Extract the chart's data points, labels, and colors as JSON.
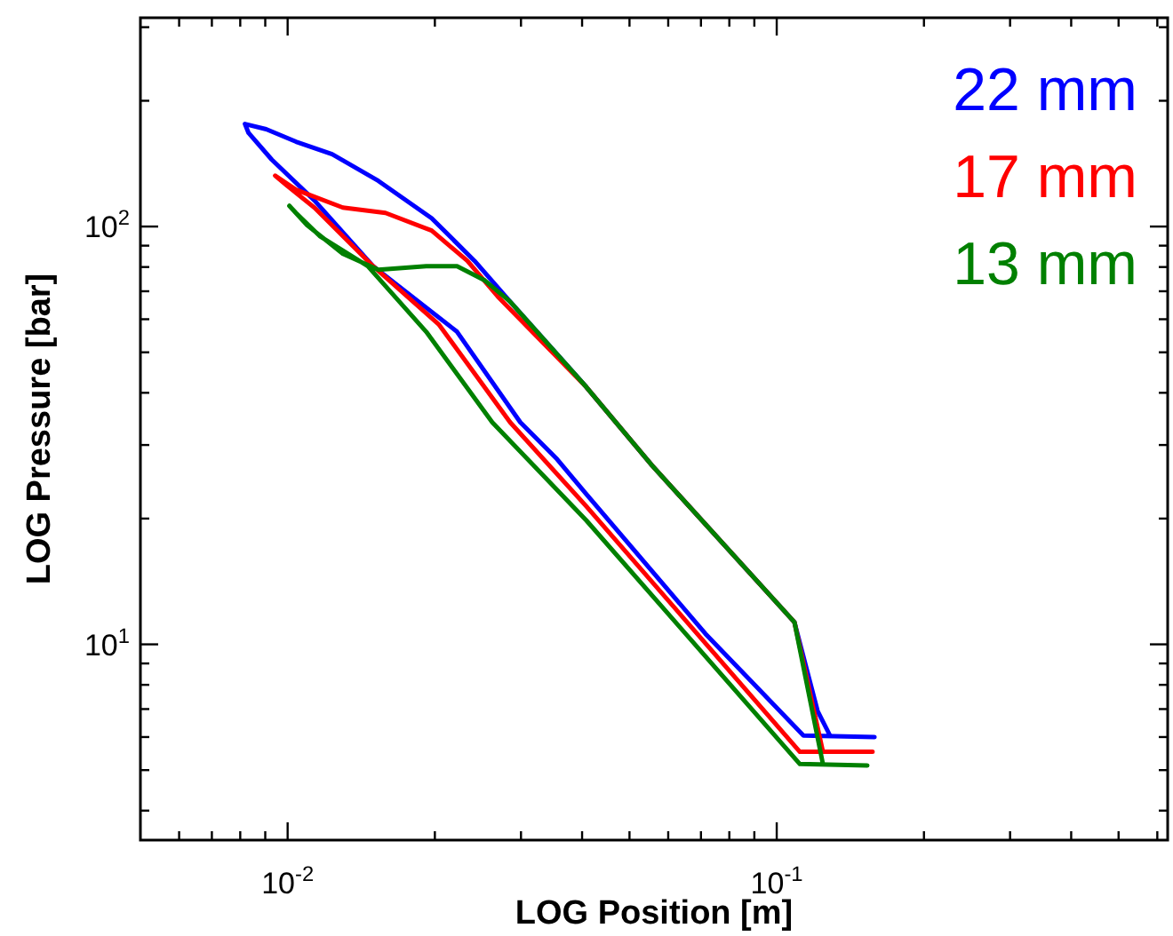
{
  "chart_data": {
    "type": "line",
    "xlabel": "LOG Position [m]",
    "ylabel": "LOG Pressure [bar]",
    "log": "xy",
    "legend": "top right",
    "marker": "none",
    "line_style": "solid",
    "xlim": [
      0.005,
      0.63
    ],
    "ylim": [
      3.4,
      316
    ],
    "xticks": [
      {
        "value": 0.006,
        "label": null
      },
      {
        "value": 0.007,
        "label": null
      },
      {
        "value": 0.008,
        "label": null
      },
      {
        "value": 0.009,
        "label": null
      },
      {
        "value": 0.01,
        "label": "10$^{-2}$"
      },
      {
        "value": 0.02,
        "label": null
      },
      {
        "value": 0.03,
        "label": null
      },
      {
        "value": 0.04,
        "label": null
      },
      {
        "value": 0.05,
        "label": null
      },
      {
        "value": 0.06,
        "label": null
      },
      {
        "value": 0.07,
        "label": null
      },
      {
        "value": 0.08,
        "label": null
      },
      {
        "value": 0.09,
        "label": null
      },
      {
        "value": 0.1,
        "label": "10$^{-1}$"
      },
      {
        "value": 0.2,
        "label": null
      },
      {
        "value": 0.3,
        "label": null
      },
      {
        "value": 0.4,
        "label": null
      },
      {
        "value": 0.5,
        "label": null
      },
      {
        "value": 0.6,
        "label": null
      }
    ],
    "yticks": [
      {
        "value": 4,
        "label": null
      },
      {
        "value": 5,
        "label": null
      },
      {
        "value": 6,
        "label": null
      },
      {
        "value": 7,
        "label": null
      },
      {
        "value": 8,
        "label": null
      },
      {
        "value": 9,
        "label": null
      },
      {
        "value": 10,
        "label": "10$^{1}$"
      },
      {
        "value": 20,
        "label": null
      },
      {
        "value": 30,
        "label": null
      },
      {
        "value": 40,
        "label": null
      },
      {
        "value": 50,
        "label": null
      },
      {
        "value": 60,
        "label": null
      },
      {
        "value": 70,
        "label": null
      },
      {
        "value": 80,
        "label": null
      },
      {
        "value": 90,
        "label": null
      },
      {
        "value": 100,
        "label": "10$^{2}$"
      },
      {
        "value": 200,
        "label": null
      },
      {
        "value": 300,
        "label": null
      }
    ],
    "series": [
      {
        "name": "22 mm",
        "color": "#0000ff",
        "x": [
          0.1585,
          0.1134,
          0.0715,
          0.0408,
          0.0354,
          0.0299,
          0.0222,
          0.01495,
          0.01134,
          0.00928,
          0.00832,
          0.00818,
          0.00904,
          0.0104,
          0.01233,
          0.01533,
          0.0197,
          0.0241,
          0.0285,
          0.0408,
          0.0556,
          0.1087,
          0.1212,
          0.1285
        ],
        "values": [
          6.0,
          6.05,
          10.6,
          22.9,
          27.9,
          34.0,
          56.0,
          80.4,
          115.5,
          144.6,
          167.5,
          176,
          171,
          159.6,
          149,
          128.6,
          104.7,
          82.8,
          66.1,
          41.3,
          26.8,
          11.3,
          6.93,
          6.05
        ]
      },
      {
        "name": "17 mm",
        "color": "#ff0000",
        "x": [
          0.157,
          0.1115,
          0.0408,
          0.0285,
          0.0204,
          0.01495,
          0.01134,
          0.01,
          0.00943,
          0.0104,
          0.01297,
          0.01585,
          0.0197,
          0.0233,
          0.0269,
          0.0408,
          0.0556,
          0.1087,
          0.1243
        ],
        "values": [
          5.53,
          5.53,
          21.4,
          34.0,
          58.2,
          80.4,
          111,
          124.9,
          132.4,
          122.5,
          111,
          107.8,
          97.8,
          82.8,
          68.0,
          41.3,
          26.8,
          11.3,
          5.53
        ]
      },
      {
        "name": "13 mm",
        "color": "#008000",
        "x": [
          0.1532,
          0.1115,
          0.0408,
          0.0262,
          0.0192,
          0.01458,
          0.01163,
          0.0104,
          0.01008,
          0.01096,
          0.01297,
          0.01533,
          0.0192,
          0.0222,
          0.0253,
          0.0285,
          0.0408,
          0.0556,
          0.1087,
          0.1243
        ],
        "values": [
          5.13,
          5.17,
          19.8,
          34.0,
          56.0,
          80.4,
          94.9,
          107.8,
          112.1,
          100.7,
          86.1,
          78.8,
          80.4,
          80.4,
          74.3,
          66.1,
          41.3,
          26.8,
          11.3,
          5.17
        ]
      }
    ]
  }
}
